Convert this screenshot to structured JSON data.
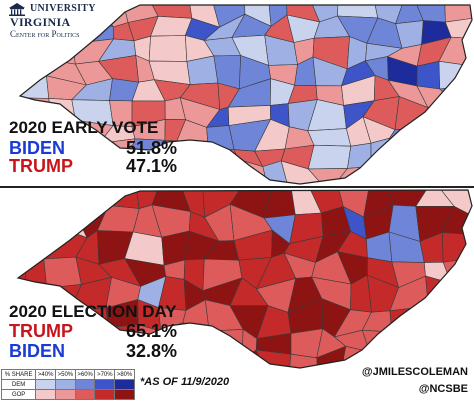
{
  "logo": {
    "line1": "UNIVERSITY",
    "line2": "VIRGINIA",
    "line3": "Center for Politics"
  },
  "early_vote": {
    "title": "2020 EARLY VOTE",
    "first": {
      "name": "BIDEN",
      "pct": "51.8%"
    },
    "second": {
      "name": "TRUMP",
      "pct": "47.1%"
    }
  },
  "election_day": {
    "title": "2020 ELECTION DAY",
    "first": {
      "name": "TRUMP",
      "pct": "65.1%"
    },
    "second": {
      "name": "BIDEN",
      "pct": "32.8%"
    }
  },
  "legend": {
    "header": "% SHARE",
    "bins": [
      ">40%",
      ">50%",
      ">60%",
      ">70%",
      ">80%"
    ],
    "rows": [
      {
        "label": "DEM",
        "colors": [
          "#c9d3ee",
          "#9fb0e4",
          "#6f86d8",
          "#3d55c8",
          "#1d2c9a"
        ]
      },
      {
        "label": "GOP",
        "colors": [
          "#f3c9c9",
          "#ec9898",
          "#dd5b5b",
          "#c42a2a",
          "#8e1414"
        ]
      }
    ]
  },
  "note": "*AS OF 11/9/2020",
  "handles": [
    "@JMILESCOLEMAN",
    "@NCSBE"
  ],
  "colors": {
    "outline": "#3a3a3a",
    "dem": [
      "#c9d3ee",
      "#9fb0e4",
      "#6f86d8",
      "#3d55c8",
      "#1d2c9a"
    ],
    "gop": [
      "#f3c9c9",
      "#ec9898",
      "#dd5b5b",
      "#c42a2a",
      "#8e1414"
    ]
  }
}
